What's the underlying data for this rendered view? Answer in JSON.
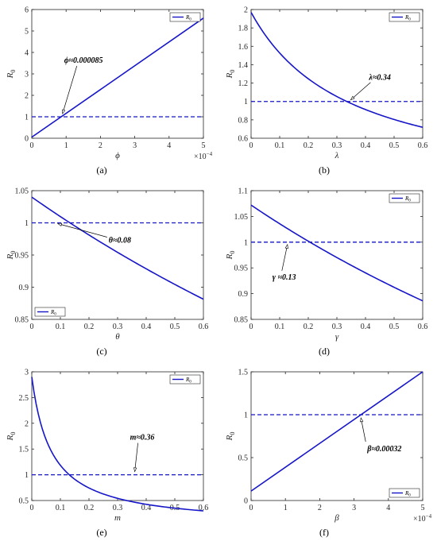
{
  "colors": {
    "series": "#1616c8",
    "threshold": "#1616c8",
    "axis": "#262626"
  },
  "chart_data": [
    {
      "type": "line",
      "panel_label": "(a)",
      "xlabel": "ϕ",
      "ylabel": "R0",
      "xlim": [
        0,
        5
      ],
      "ylim": [
        0,
        6
      ],
      "xticks": [
        0,
        1,
        2,
        3,
        4,
        5
      ],
      "yticks": [
        0,
        1,
        2,
        3,
        4,
        5,
        6
      ],
      "x_exponent": "×10",
      "x_exponent_power": "−4",
      "legend": "R0",
      "legend_position": "top-right",
      "threshold": 1,
      "annotation": "ϕ≈0.000085",
      "annotation_point": [
        0.85,
        1
      ],
      "curve": {
        "kind": "linear",
        "x": [
          0,
          5
        ],
        "y": [
          0.05,
          5.6
        ]
      }
    },
    {
      "type": "line",
      "panel_label": "(b)",
      "xlabel": "λ",
      "ylabel": "R0",
      "xlim": [
        0,
        0.6
      ],
      "ylim": [
        0.6,
        2
      ],
      "xticks": [
        0,
        0.1,
        0.2,
        0.3,
        0.4,
        0.5,
        0.6
      ],
      "yticks": [
        0.6,
        0.8,
        1,
        1.2,
        1.4,
        1.6,
        1.8,
        2
      ],
      "legend": "R0",
      "legend_position": "top-right",
      "threshold": 1,
      "annotation": "λ≈0.34",
      "annotation_point": [
        0.34,
        1
      ],
      "curve": {
        "kind": "hyperbolic",
        "a": 1.97,
        "b": 2.9,
        "x0": 0,
        "x1": 0.6
      }
    },
    {
      "type": "line",
      "panel_label": "(c)",
      "xlabel": "θ",
      "ylabel": "R0",
      "xlim": [
        0,
        0.6
      ],
      "ylim": [
        0.85,
        1.05
      ],
      "xticks": [
        0,
        0.1,
        0.2,
        0.3,
        0.4,
        0.5,
        0.6
      ],
      "yticks": [
        0.85,
        0.9,
        0.95,
        1,
        1.05
      ],
      "legend": "R0",
      "legend_position": "bottom-left",
      "threshold": 1,
      "annotation": "θ≈0.08",
      "annotation_point": [
        0.08,
        1
      ],
      "curve": {
        "kind": "hyperbolic",
        "a": 1.04,
        "b": 0.3,
        "x0": 0,
        "x1": 0.6
      }
    },
    {
      "type": "line",
      "panel_label": "(d)",
      "xlabel": "γ",
      "ylabel": "R0",
      "xlim": [
        0,
        0.6
      ],
      "ylim": [
        0.85,
        1.1
      ],
      "xticks": [
        0,
        0.1,
        0.2,
        0.3,
        0.4,
        0.5,
        0.6
      ],
      "yticks": [
        0.85,
        0.9,
        0.95,
        1,
        1.05,
        1.1
      ],
      "legend": "R0",
      "legend_position": "top-right",
      "threshold": 1,
      "annotation": "γ ≈0.13",
      "annotation_point": [
        0.13,
        1
      ],
      "curve": {
        "kind": "hyperbolic",
        "a": 1.072,
        "b": 0.35,
        "x0": 0,
        "x1": 0.6
      }
    },
    {
      "type": "line",
      "panel_label": "(e)",
      "xlabel": "m",
      "ylabel": "R0",
      "xlim": [
        0,
        0.6
      ],
      "ylim": [
        0.5,
        3
      ],
      "xticks": [
        0,
        0.1,
        0.2,
        0.3,
        0.4,
        0.5,
        0.6
      ],
      "yticks": [
        0.5,
        1,
        1.5,
        2,
        2.5,
        3
      ],
      "legend": "R0",
      "legend_position": "top-right",
      "threshold": 1,
      "annotation": "m≈0.36",
      "annotation_point": [
        0.36,
        1
      ],
      "curve": {
        "kind": "hyperbolic",
        "a": 2.9,
        "b": 14.5,
        "x0": 0,
        "x1": 0.6
      }
    },
    {
      "type": "line",
      "panel_label": "(f)",
      "xlabel": "β",
      "ylabel": "R0",
      "xlim": [
        0,
        5
      ],
      "ylim": [
        0,
        1.5
      ],
      "xticks": [
        0,
        1,
        2,
        3,
        4,
        5
      ],
      "yticks": [
        0,
        0.5,
        1,
        1.5
      ],
      "x_exponent": "×10",
      "x_exponent_power": "−4",
      "legend": "R0",
      "legend_position": "bottom-right",
      "threshold": 1,
      "annotation": "β≈0.00032",
      "annotation_point": [
        3.2,
        1
      ],
      "curve": {
        "kind": "linear",
        "x": [
          0,
          5
        ],
        "y": [
          0.11,
          1.5
        ]
      }
    }
  ]
}
